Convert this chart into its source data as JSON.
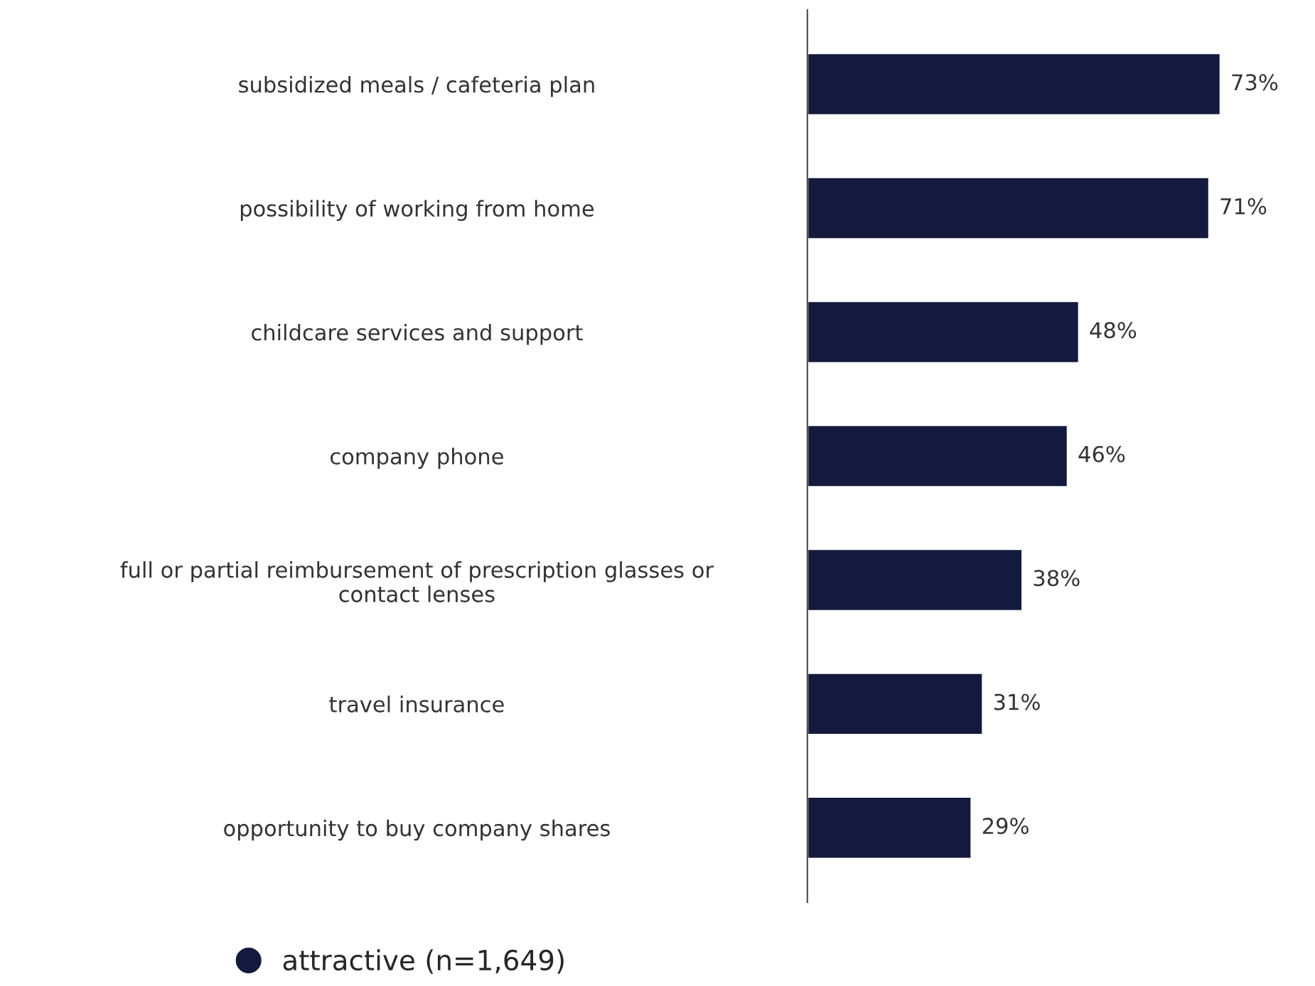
{
  "chart_data": {
    "type": "bar",
    "orientation": "horizontal",
    "categories": [
      "subsidized meals / cafeteria plan",
      "possibility of working from home",
      "childcare services and support",
      "company phone",
      "full or partial reimbursement of prescription glasses or\ncontact lenses",
      "travel insurance",
      "opportunity to buy company shares"
    ],
    "series": [
      {
        "name": "attractive (n=1,649)",
        "color": "#141a3d",
        "values": [
          73,
          71,
          48,
          46,
          38,
          31,
          29
        ],
        "value_labels": [
          "73%",
          "71%",
          "48%",
          "46%",
          "38%",
          "31%",
          "29%"
        ]
      }
    ],
    "legend": "bottom left",
    "grid": false,
    "tick_labels": "y"
  }
}
